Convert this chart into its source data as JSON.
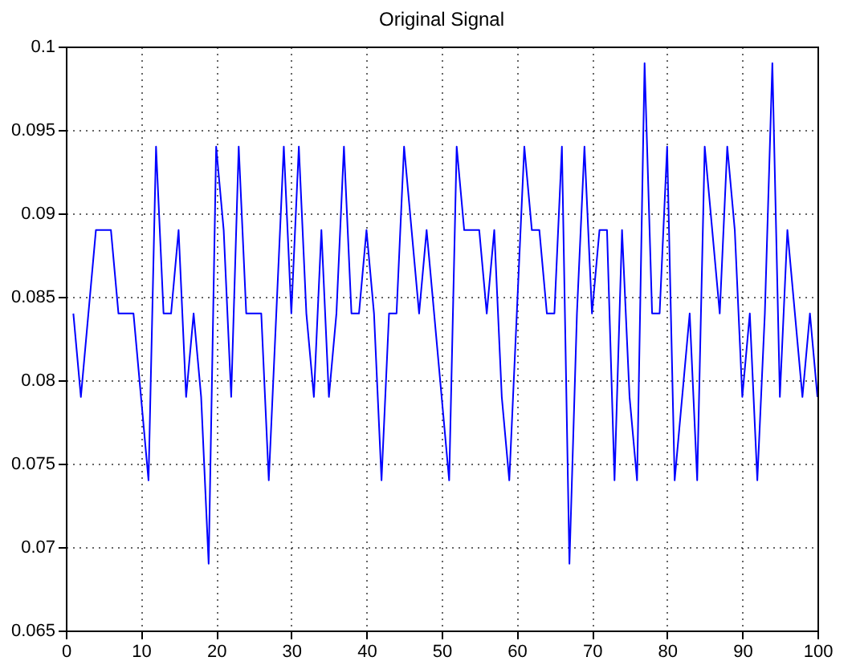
{
  "chart_data": {
    "type": "line",
    "title": "Original Signal",
    "x": [
      1,
      2,
      3,
      4,
      5,
      6,
      7,
      8,
      9,
      10,
      11,
      12,
      13,
      14,
      15,
      16,
      17,
      18,
      19,
      20,
      21,
      22,
      23,
      24,
      25,
      26,
      27,
      28,
      29,
      30,
      31,
      32,
      33,
      34,
      35,
      36,
      37,
      38,
      39,
      40,
      41,
      42,
      43,
      44,
      45,
      46,
      47,
      48,
      49,
      50,
      51,
      52,
      53,
      54,
      55,
      56,
      57,
      58,
      59,
      60,
      61,
      62,
      63,
      64,
      65,
      66,
      67,
      68,
      69,
      70,
      71,
      72,
      73,
      74,
      75,
      76,
      77,
      78,
      79,
      80,
      81,
      82,
      83,
      84,
      85,
      86,
      87,
      88,
      89,
      90,
      91,
      92,
      93,
      94,
      95,
      96,
      97,
      98,
      99,
      100
    ],
    "series": [
      {
        "color": "#0000ff",
        "values": [
          0.084,
          0.079,
          0.084,
          0.089,
          0.089,
          0.089,
          0.084,
          0.084,
          0.084,
          0.079,
          0.074,
          0.094,
          0.084,
          0.084,
          0.089,
          0.079,
          0.084,
          0.079,
          0.069,
          0.094,
          0.089,
          0.079,
          0.094,
          0.084,
          0.084,
          0.084,
          0.074,
          0.084,
          0.094,
          0.084,
          0.094,
          0.084,
          0.079,
          0.089,
          0.079,
          0.084,
          0.094,
          0.084,
          0.084,
          0.089,
          0.084,
          0.074,
          0.084,
          0.084,
          0.094,
          0.089,
          0.084,
          0.089,
          0.084,
          0.079,
          0.074,
          0.094,
          0.089,
          0.089,
          0.089,
          0.084,
          0.089,
          0.079,
          0.074,
          0.084,
          0.094,
          0.089,
          0.089,
          0.084,
          0.084,
          0.094,
          0.069,
          0.084,
          0.094,
          0.084,
          0.089,
          0.089,
          0.074,
          0.089,
          0.079,
          0.074,
          0.099,
          0.084,
          0.084,
          0.094,
          0.074,
          0.079,
          0.084,
          0.074,
          0.094,
          0.089,
          0.084,
          0.094,
          0.089,
          0.079,
          0.084,
          0.074,
          0.084,
          0.099,
          0.079,
          0.089,
          0.084,
          0.079,
          0.084,
          0.079
        ]
      }
    ],
    "xlim": [
      0,
      100
    ],
    "xticks": [
      0,
      10,
      20,
      30,
      40,
      50,
      60,
      70,
      80,
      90,
      100
    ],
    "ylim": [
      0.065,
      0.1
    ],
    "yticks": [
      0.065,
      0.07,
      0.075,
      0.08,
      0.085,
      0.09,
      0.095,
      0.1
    ],
    "grid": true,
    "line_style": "solid",
    "marker": "none"
  }
}
